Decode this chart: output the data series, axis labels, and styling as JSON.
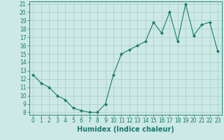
{
  "xlabel": "Humidex (Indice chaleur)",
  "x": [
    0,
    1,
    2,
    3,
    4,
    5,
    6,
    7,
    8,
    9,
    10,
    11,
    12,
    13,
    14,
    15,
    16,
    17,
    18,
    19,
    20,
    21,
    22,
    23
  ],
  "y": [
    12.5,
    11.5,
    11.0,
    10.0,
    9.5,
    8.5,
    8.2,
    8.0,
    8.0,
    9.0,
    12.5,
    15.0,
    15.5,
    16.0,
    16.5,
    18.8,
    17.5,
    20.0,
    16.5,
    21.0,
    17.2,
    18.5,
    18.8,
    15.3
  ],
  "ylim_min": 8,
  "ylim_max": 21,
  "xlim_min": 0,
  "xlim_max": 23,
  "yticks": [
    8,
    9,
    10,
    11,
    12,
    13,
    14,
    15,
    16,
    17,
    18,
    19,
    20,
    21
  ],
  "xticks": [
    0,
    1,
    2,
    3,
    4,
    5,
    6,
    7,
    8,
    9,
    10,
    11,
    12,
    13,
    14,
    15,
    16,
    17,
    18,
    19,
    20,
    21,
    22,
    23
  ],
  "line_color": "#1a7a6e",
  "marker": "D",
  "marker_size": 2.0,
  "bg_color": "#cce9e5",
  "grid_color": "#a8cdc8",
  "tick_label_fontsize": 5.5,
  "xlabel_fontsize": 7.0
}
